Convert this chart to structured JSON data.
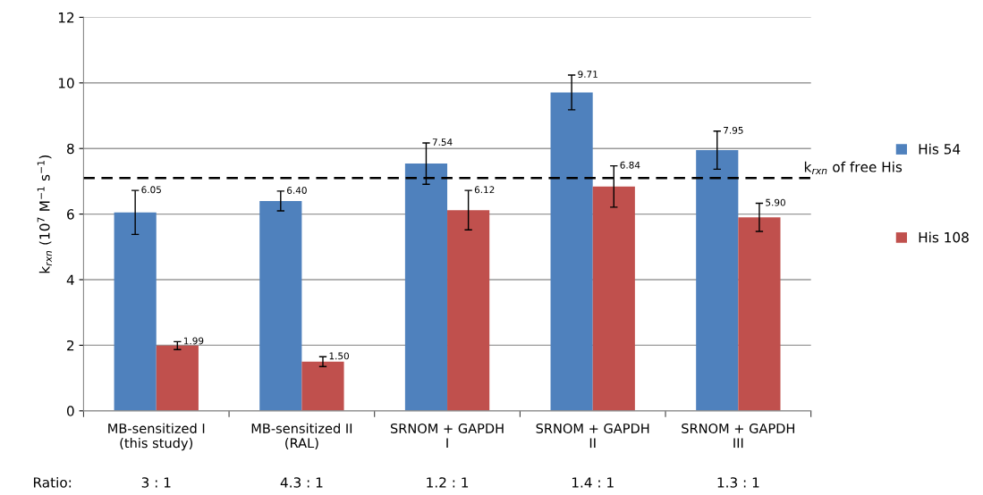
{
  "chart_data": {
    "type": "bar",
    "categories": [
      "MB-sensitized I\n(this study)",
      "MB-sensitized II\n(RAL)",
      "SRNOM + GAPDH\nI",
      "SRNOM + GAPDH\nII",
      "SRNOM + GAPDH\nIII"
    ],
    "ylabel": "k$_{rxn}$ (10$^{7}$ M$^{−1}$ s$^{−1}$)",
    "series": [
      {
        "name": "His 54",
        "color": "#4f81bd",
        "values": [
          6.05,
          6.4,
          7.54,
          9.71,
          7.95
        ],
        "errors": [
          0.67,
          0.3,
          0.63,
          0.53,
          0.58
        ],
        "value_labels": [
          "6.05",
          "6.40",
          "7.54",
          "9.71",
          "7.95"
        ]
      },
      {
        "name": "His 108",
        "color": "#c0504d",
        "values": [
          1.99,
          1.5,
          6.12,
          6.84,
          5.9
        ],
        "errors": [
          0.12,
          0.15,
          0.6,
          0.63,
          0.43
        ],
        "value_labels": [
          "1.99",
          "1.50",
          "6.12",
          "6.84",
          "5.90"
        ]
      }
    ],
    "ylim": [
      0,
      12
    ],
    "yticks": [
      0,
      2,
      4,
      6,
      8,
      10,
      12
    ],
    "ref_lines": [
      {
        "axis": "y",
        "value": 7.1,
        "label": "k$_{rxn}$ of free His",
        "color": "#000000",
        "line_style": "dashed"
      }
    ],
    "annotations": [
      "Ratio:",
      "3 : 1",
      "4.3 : 1",
      "1.2 : 1",
      "1.4 : 1",
      "1.3 : 1"
    ],
    "grid": "y",
    "legend": "right"
  }
}
